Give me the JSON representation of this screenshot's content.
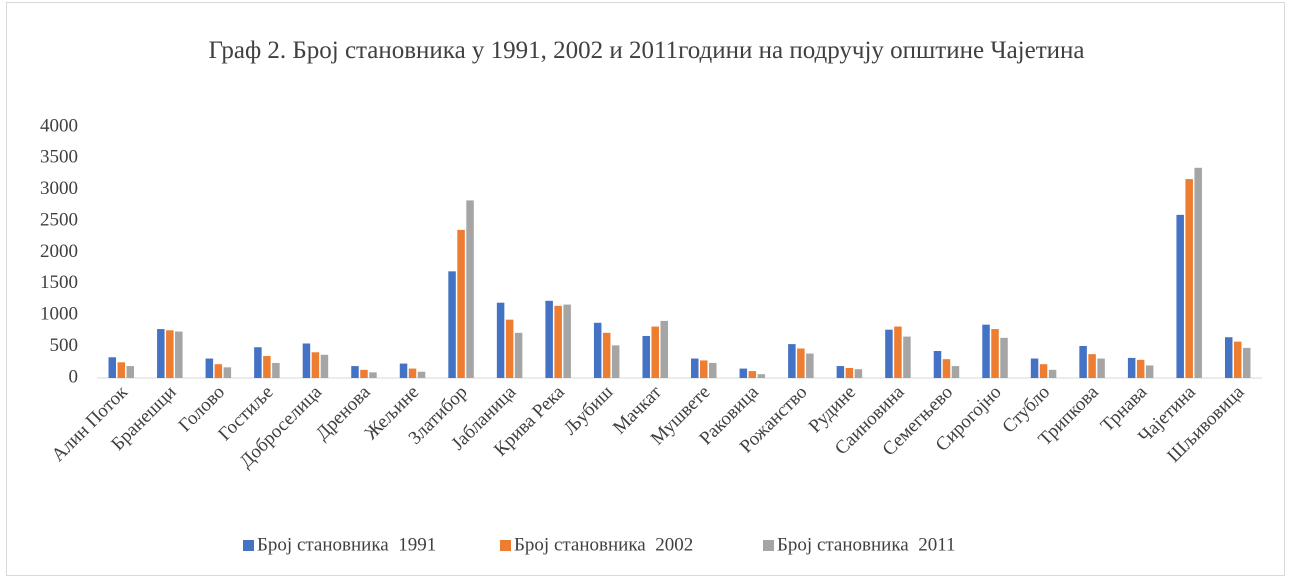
{
  "chart_data": {
    "type": "bar",
    "title": "Граф 2. Број становника у 1991, 2002 и 2011години на подручју општине Чајетина",
    "categories": [
      "Алин Поток",
      "Бранешци",
      "Голово",
      "Гостиље",
      "Доброселица",
      "Дренова",
      "Жељине",
      "Златибор",
      "Јабланица",
      "Крива Река",
      "Љубиш",
      "Мачкат",
      "Мушвете",
      "Раковица",
      "Рожанство",
      "Рудине",
      "Саиновина",
      "Семегњево",
      "Сирогојно",
      "Стубло",
      "Трипкова",
      "Трнава",
      "Чајетина",
      "Шљивовица"
    ],
    "series": [
      {
        "name": "Број становника  1991",
        "color": "#4472c4",
        "values": [
          330,
          780,
          310,
          490,
          550,
          190,
          230,
          1700,
          1200,
          1230,
          880,
          670,
          310,
          150,
          540,
          190,
          770,
          430,
          850,
          310,
          510,
          320,
          2600,
          650
        ]
      },
      {
        "name": "Број становника  2002",
        "color": "#ed7d31",
        "values": [
          250,
          760,
          220,
          350,
          410,
          130,
          150,
          2360,
          930,
          1150,
          720,
          820,
          280,
          110,
          470,
          160,
          820,
          300,
          780,
          220,
          380,
          290,
          3170,
          580
        ]
      },
      {
        "name": "Број становника  2011",
        "color": "#a5a5a5",
        "values": [
          190,
          740,
          170,
          240,
          370,
          90,
          100,
          2830,
          720,
          1170,
          520,
          910,
          240,
          60,
          390,
          140,
          660,
          190,
          640,
          130,
          310,
          200,
          3350,
          480
        ]
      }
    ],
    "ylim": [
      0,
      4000
    ],
    "yticks": [
      0,
      500,
      1000,
      1500,
      2000,
      2500,
      3000,
      3500,
      4000
    ],
    "grid": false,
    "legend": "bottom"
  }
}
